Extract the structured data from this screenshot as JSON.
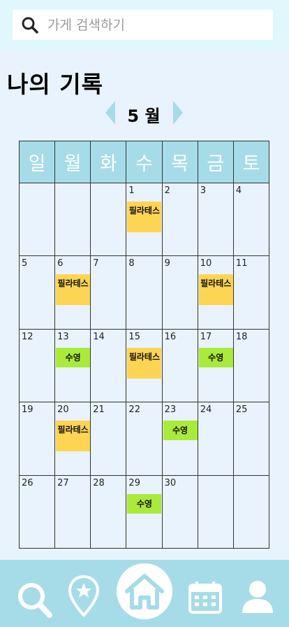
{
  "search": {
    "placeholder": "가게 검색하기"
  },
  "page_title": "나의 기록",
  "month": {
    "label": "5 월"
  },
  "calendar": {
    "weekdays": [
      "일",
      "월",
      "화",
      "수",
      "목",
      "금",
      "토"
    ],
    "weeks": [
      [
        {
          "day": ""
        },
        {
          "day": ""
        },
        {
          "day": ""
        },
        {
          "day": "1",
          "event": "필라테스",
          "type": "pilates"
        },
        {
          "day": "2"
        },
        {
          "day": "3"
        },
        {
          "day": "4"
        }
      ],
      [
        {
          "day": "5"
        },
        {
          "day": "6",
          "event": "필라테스",
          "type": "pilates"
        },
        {
          "day": "7"
        },
        {
          "day": "8"
        },
        {
          "day": "9"
        },
        {
          "day": "10",
          "event": "필라테스",
          "type": "pilates"
        },
        {
          "day": "11"
        }
      ],
      [
        {
          "day": "12"
        },
        {
          "day": "13",
          "event": "수영",
          "type": "swim"
        },
        {
          "day": "14"
        },
        {
          "day": "15",
          "event": "필라테스",
          "type": "pilates"
        },
        {
          "day": "16"
        },
        {
          "day": "17",
          "event": "수영",
          "type": "swim"
        },
        {
          "day": "18"
        }
      ],
      [
        {
          "day": "19"
        },
        {
          "day": "20",
          "event": "필라테스",
          "type": "pilates"
        },
        {
          "day": "21"
        },
        {
          "day": "22"
        },
        {
          "day": "23",
          "event": "수영",
          "type": "swim"
        },
        {
          "day": "24"
        },
        {
          "day": "25"
        }
      ],
      [
        {
          "day": "26"
        },
        {
          "day": "27"
        },
        {
          "day": "28"
        },
        {
          "day": "29",
          "event": "수영",
          "type": "swim"
        },
        {
          "day": "30"
        },
        {
          "day": ""
        },
        {
          "day": ""
        }
      ]
    ]
  },
  "colors": {
    "accent": "#a6dce7",
    "pilates": "#fdd553",
    "swim": "#a9ea3a",
    "background": "#e9f3fd"
  },
  "bottom_nav": {
    "items": [
      "search-icon",
      "map-pin-star-icon",
      "home-icon",
      "calendar-icon",
      "user-icon"
    ]
  }
}
